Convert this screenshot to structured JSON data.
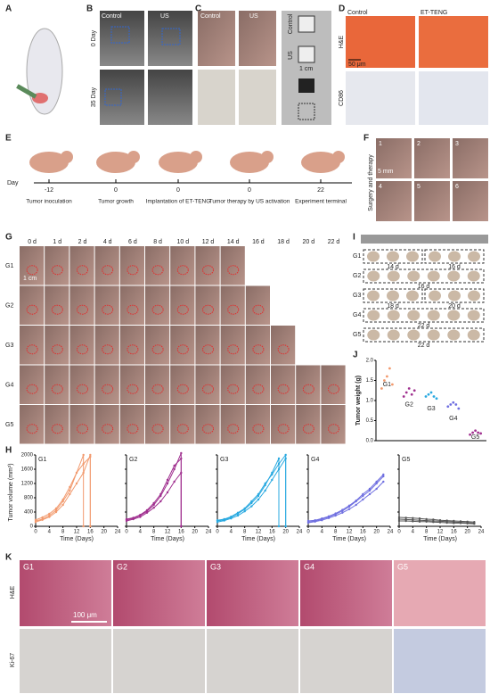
{
  "panels": {
    "A": {
      "letter": "A"
    },
    "B": {
      "letter": "B",
      "rows": [
        "0 Day",
        "35 Day"
      ],
      "cols": [
        "Control",
        "US"
      ]
    },
    "C": {
      "letter": "C",
      "cols": [
        "Control",
        "US"
      ],
      "side": [
        "Control",
        "US"
      ],
      "scale": "1 cm"
    },
    "D": {
      "letter": "D",
      "cols": [
        "Control",
        "ET-TENG"
      ],
      "rows": [
        "H&E",
        "CD86"
      ],
      "scale": "50 μm"
    },
    "E": {
      "letter": "E",
      "day": "Day",
      "ticks": [
        "-12",
        "0",
        "0",
        "0",
        "22"
      ],
      "steps": [
        "Tumor inoculation",
        "Tumor growth",
        "Implantation of ET-TENG",
        "Tumor therapy by US activation",
        "Experiment terminal"
      ]
    },
    "F": {
      "letter": "F",
      "numbers": [
        "1",
        "2",
        "3",
        "4",
        "5",
        "6"
      ],
      "side": "Surgery and therapy",
      "scale": "5 mm"
    },
    "G": {
      "letter": "G",
      "days": [
        "0 d",
        "1 d",
        "2 d",
        "4 d",
        "6 d",
        "8 d",
        "10 d",
        "12 d",
        "14 d",
        "16 d",
        "18 d",
        "20 d",
        "22 d"
      ],
      "groups": [
        "G1",
        "G2",
        "G3",
        "G4",
        "G5"
      ],
      "scale": "1 cm"
    },
    "I": {
      "letter": "I",
      "rows": [
        {
          "label": "G1",
          "boxes": [
            "14 d",
            "16 d"
          ]
        },
        {
          "label": "G2",
          "boxes": [
            "16 d"
          ]
        },
        {
          "label": "G3",
          "boxes": [
            "18 d",
            "20 d"
          ]
        },
        {
          "label": "G4",
          "boxes": [
            "22 d"
          ]
        },
        {
          "label": "G5",
          "boxes": [
            "22 d"
          ]
        }
      ]
    },
    "J": {
      "letter": "J"
    },
    "H": {
      "letter": "H",
      "ylabel": "Tumor volume (mm³)"
    },
    "K": {
      "letter": "K",
      "groups": [
        "G1",
        "G2",
        "G3",
        "G4",
        "G5"
      ],
      "rows": [
        "H&E",
        "Ki-67"
      ],
      "scale": "100 μm"
    }
  },
  "chart_data": [
    {
      "type": "line",
      "title": "G1",
      "xlabel": "Time (Days)",
      "xlim": [
        0,
        24
      ],
      "xticks": [
        0,
        4,
        8,
        12,
        16,
        20,
        24
      ],
      "ylim": [
        0,
        2000
      ],
      "yticks": [
        0,
        400,
        800,
        1200,
        1600,
        2000
      ],
      "series": [
        {
          "color": "#f29a6e",
          "x": [
            0,
            2,
            4,
            6,
            8,
            10,
            12,
            14,
            14
          ],
          "values": [
            150,
            200,
            300,
            450,
            700,
            1000,
            1500,
            2000,
            0
          ]
        },
        {
          "color": "#f29a6e",
          "x": [
            0,
            2,
            4,
            6,
            8,
            10,
            12,
            14,
            16,
            16
          ],
          "values": [
            180,
            250,
            350,
            500,
            750,
            1100,
            1500,
            1750,
            1950,
            0
          ]
        },
        {
          "color": "#f29a6e",
          "x": [
            0,
            2,
            4,
            6,
            8,
            10,
            12,
            14,
            16,
            16
          ],
          "values": [
            120,
            180,
            260,
            400,
            600,
            900,
            1200,
            1500,
            2000,
            0
          ]
        }
      ]
    },
    {
      "type": "line",
      "title": "G2",
      "xlabel": "Time (Days)",
      "xlim": [
        0,
        24
      ],
      "xticks": [
        0,
        4,
        8,
        12,
        16,
        20,
        24
      ],
      "ylim": [
        0,
        2000
      ],
      "yticks": [
        0,
        400,
        800,
        1200,
        1600,
        2000
      ],
      "series": [
        {
          "color": "#a0308f",
          "x": [
            0,
            2,
            4,
            6,
            8,
            10,
            12,
            14,
            16,
            16
          ],
          "values": [
            180,
            220,
            300,
            420,
            600,
            850,
            1200,
            1600,
            2050,
            0
          ]
        },
        {
          "color": "#a0308f",
          "x": [
            0,
            2,
            4,
            6,
            8,
            10,
            12,
            14,
            16,
            16
          ],
          "values": [
            150,
            200,
            260,
            380,
            520,
            700,
            950,
            1250,
            1500,
            0
          ]
        },
        {
          "color": "#a0308f",
          "x": [
            0,
            2,
            4,
            6,
            8,
            10,
            12,
            14,
            16,
            16
          ],
          "values": [
            200,
            240,
            320,
            450,
            650,
            900,
            1300,
            1700,
            1900,
            0
          ]
        }
      ]
    },
    {
      "type": "line",
      "title": "G3",
      "xlabel": "Time (Days)",
      "xlim": [
        0,
        24
      ],
      "xticks": [
        0,
        4,
        8,
        12,
        16,
        20,
        24
      ],
      "ylim": [
        0,
        2000
      ],
      "yticks": [
        0,
        400,
        800,
        1200,
        1600,
        2000
      ],
      "series": [
        {
          "color": "#29a9e0",
          "x": [
            0,
            2,
            4,
            6,
            8,
            10,
            12,
            14,
            16,
            18,
            18
          ],
          "values": [
            150,
            180,
            250,
            350,
            480,
            650,
            850,
            1150,
            1500,
            1900,
            0
          ]
        },
        {
          "color": "#29a9e0",
          "x": [
            0,
            2,
            4,
            6,
            8,
            10,
            12,
            14,
            16,
            18,
            20,
            20
          ],
          "values": [
            120,
            160,
            220,
            300,
            420,
            560,
            750,
            1000,
            1300,
            1600,
            1900,
            0
          ]
        },
        {
          "color": "#29a9e0",
          "x": [
            0,
            2,
            4,
            6,
            8,
            10,
            12,
            14,
            16,
            18,
            20,
            20
          ],
          "values": [
            170,
            200,
            270,
            380,
            500,
            700,
            900,
            1200,
            1450,
            1750,
            2000,
            0
          ]
        }
      ]
    },
    {
      "type": "line",
      "title": "G4",
      "xlabel": "Time (Days)",
      "xlim": [
        0,
        24
      ],
      "xticks": [
        0,
        4,
        8,
        12,
        16,
        20,
        24
      ],
      "ylim": [
        0,
        2000
      ],
      "yticks": [
        0,
        400,
        800,
        1200,
        1600,
        2000
      ],
      "series": [
        {
          "color": "#6f6fe0",
          "x": [
            0,
            2,
            4,
            6,
            8,
            10,
            12,
            14,
            16,
            18,
            20,
            22
          ],
          "values": [
            120,
            150,
            200,
            260,
            340,
            430,
            550,
            700,
            850,
            1000,
            1200,
            1400
          ]
        },
        {
          "color": "#6f6fe0",
          "x": [
            0,
            2,
            4,
            6,
            8,
            10,
            12,
            14,
            16,
            18,
            20,
            22
          ],
          "values": [
            150,
            170,
            220,
            280,
            360,
            460,
            580,
            720,
            900,
            1050,
            1250,
            1450
          ]
        },
        {
          "color": "#6f6fe0",
          "x": [
            0,
            2,
            4,
            6,
            8,
            10,
            12,
            14,
            16,
            18,
            20,
            22
          ],
          "values": [
            100,
            130,
            170,
            230,
            300,
            380,
            480,
            600,
            750,
            900,
            1050,
            1250
          ]
        }
      ]
    },
    {
      "type": "line",
      "title": "G5",
      "xlabel": "Time (Days)",
      "xlim": [
        0,
        24
      ],
      "xticks": [
        0,
        4,
        8,
        12,
        16,
        20,
        24
      ],
      "ylim": [
        0,
        2000
      ],
      "yticks": [
        0,
        400,
        800,
        1200,
        1600,
        2000
      ],
      "series": [
        {
          "color": "#555555",
          "x": [
            0,
            2,
            4,
            6,
            8,
            10,
            12,
            14,
            16,
            18,
            20,
            22
          ],
          "values": [
            250,
            240,
            230,
            220,
            200,
            190,
            170,
            160,
            150,
            140,
            130,
            120
          ]
        },
        {
          "color": "#555555",
          "x": [
            0,
            2,
            4,
            6,
            8,
            10,
            12,
            14,
            16,
            18,
            20,
            22
          ],
          "values": [
            200,
            190,
            180,
            170,
            160,
            150,
            140,
            130,
            120,
            110,
            100,
            90
          ]
        },
        {
          "color": "#555555",
          "x": [
            0,
            2,
            4,
            6,
            8,
            10,
            12,
            14,
            16,
            18,
            20,
            22
          ],
          "values": [
            150,
            150,
            140,
            130,
            130,
            120,
            110,
            100,
            90,
            90,
            80,
            70
          ]
        }
      ]
    },
    {
      "type": "scatter",
      "ylabel": "Tumor weight (g)",
      "ylim": [
        0,
        2
      ],
      "yticks": [
        {
          "value": 0,
          "label": "0.0"
        },
        {
          "value": 0.5,
          "label": "0.5"
        },
        {
          "value": 1,
          "label": "1.0"
        },
        {
          "value": 1.5,
          "label": "1.5"
        },
        {
          "value": 2,
          "label": "2.0"
        }
      ],
      "groups": [
        {
          "label": "G1",
          "color": "#f29a6e",
          "values": [
            1.3,
            1.5,
            1.6,
            1.8,
            1.4
          ]
        },
        {
          "label": "G2",
          "color": "#a0308f",
          "values": [
            1.1,
            1.2,
            1.3,
            1.15,
            1.25
          ]
        },
        {
          "label": "G3",
          "color": "#29a9e0",
          "values": [
            1.1,
            1.15,
            1.2,
            1.1,
            1.05
          ]
        },
        {
          "label": "G4",
          "color": "#6f6fe0",
          "values": [
            0.85,
            0.9,
            0.95,
            0.9,
            0.8
          ]
        },
        {
          "label": "G5",
          "color": "#a0308f",
          "values": [
            0.15,
            0.2,
            0.25,
            0.2,
            0.18
          ]
        }
      ]
    }
  ]
}
